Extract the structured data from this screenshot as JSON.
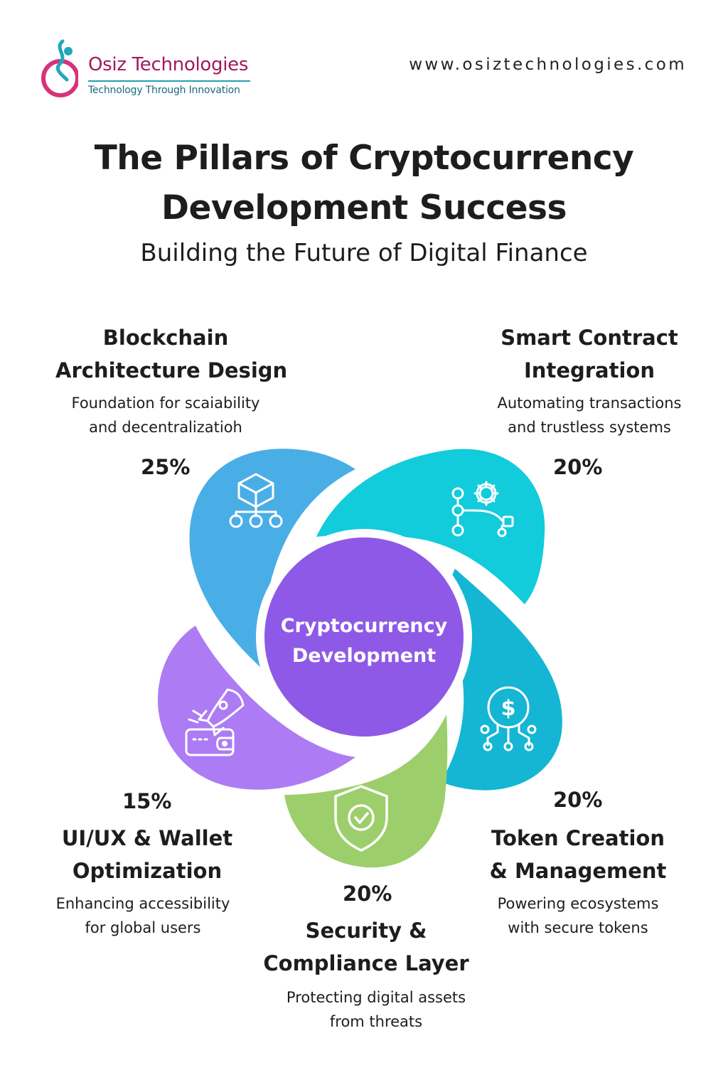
{
  "header": {
    "brand_name": "Osiz Technologies",
    "tagline": "Technology Through Innovation",
    "url": "www.osiztechnologies.com"
  },
  "title": {
    "line1": "The Pillars of Cryptocurrency",
    "line2": "Development Success",
    "subtitle": "Building the Future of Digital Finance"
  },
  "center": {
    "line1": "Cryptocurrency",
    "line2": "Development",
    "color": "#8e59e6"
  },
  "pillars": [
    {
      "key": "blockchain",
      "title_lines": [
        "Blockchain",
        "Architecture Design"
      ],
      "desc_lines": [
        "Foundation for scaiability",
        "and decentralizatioh"
      ],
      "percent": "25%",
      "share": 25,
      "color": "#4aaee6",
      "icon": "blockchain-network-icon"
    },
    {
      "key": "smart-contract",
      "title_lines": [
        "Smart Contract",
        "Integration"
      ],
      "desc_lines": [
        "Automating transactions",
        "and trustless systems"
      ],
      "percent": "20%",
      "share": 20,
      "color": "#12cbdb",
      "icon": "gear-workflow-icon"
    },
    {
      "key": "token",
      "title_lines": [
        "Token Creation",
        "& Management"
      ],
      "desc_lines": [
        "Powering ecosystems",
        "with secure tokens"
      ],
      "percent": "20%",
      "share": 20,
      "color": "#14b6d4",
      "icon": "dollar-coin-circuit-icon"
    },
    {
      "key": "security",
      "title_lines": [
        "Security &",
        "Compliance Layer"
      ],
      "desc_lines": [
        "Protecting digital assets",
        "from threats"
      ],
      "percent": "20%",
      "share": 20,
      "color": "#9ccf6b",
      "icon": "shield-check-icon"
    },
    {
      "key": "uiux",
      "title_lines": [
        "UI/UX & Wallet",
        "Optimization"
      ],
      "desc_lines": [
        "Enhancing accessibility",
        "for global users"
      ],
      "percent": "15%",
      "share": 15,
      "color": "#ad7cf4",
      "icon": "rocket-wallet-icon"
    }
  ]
}
